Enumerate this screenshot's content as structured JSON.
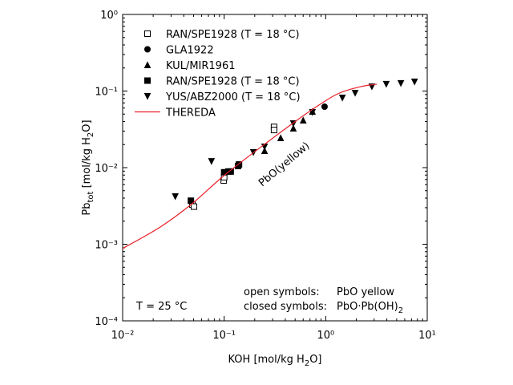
{
  "chart_data": {
    "type": "scatter",
    "xlabel": [
      "KOH [mol/kg H",
      "2",
      "O]"
    ],
    "ylabel": [
      "Pb",
      "tot",
      " [mol/kg H",
      "2",
      "O]"
    ],
    "xscale": "log",
    "yscale": "log",
    "xlim": [
      0.01,
      10
    ],
    "ylim": [
      0.0001,
      1
    ],
    "xticks": [
      {
        "value": 0.01,
        "label": "10⁻²"
      },
      {
        "value": 0.1,
        "label": "10⁻¹"
      },
      {
        "value": 1,
        "label": "10⁰"
      },
      {
        "value": 10,
        "label": "10¹"
      }
    ],
    "yticks": [
      {
        "value": 0.0001,
        "label": "10⁻⁴"
      },
      {
        "value": 0.001,
        "label": "10⁻³"
      },
      {
        "value": 0.01,
        "label": "10⁻²"
      },
      {
        "value": 0.1,
        "label": "10⁻¹"
      },
      {
        "value": 1,
        "label": "10⁰"
      }
    ],
    "legend": "upper left",
    "series": [
      {
        "name": "RAN/SPE1928 (T = 18 °C)",
        "marker": "open-square",
        "color": "#000000",
        "x": [
          0.0486,
          0.0504,
          0.099,
          0.1,
          0.31,
          0.31
        ],
        "values": [
          0.0033,
          0.0031,
          0.0068,
          0.0075,
          0.034,
          0.031
        ]
      },
      {
        "name": "GLA1922",
        "marker": "circle",
        "color": "#000000",
        "x": [
          0.975
        ],
        "values": [
          0.0625
        ]
      },
      {
        "name": "KUL/MIR1961",
        "marker": "triangle-up",
        "color": "#000000",
        "x": [
          0.25,
          0.36,
          0.48,
          0.6,
          0.74
        ],
        "values": [
          0.0166,
          0.0244,
          0.0326,
          0.0415,
          0.054
        ]
      },
      {
        "name": "RAN/SPE1928 (T = 18 °C)",
        "marker": "square",
        "color": "#000000",
        "x": [
          0.047,
          0.1,
          0.11,
          0.116,
          0.137,
          0.14
        ],
        "values": [
          0.0037,
          0.0087,
          0.0089,
          0.0089,
          0.0105,
          0.011
        ]
      },
      {
        "name": "YUS/ABZ2000 (T = 18 °C)",
        "marker": "triangle-down",
        "color": "#000000",
        "x": [
          0.033,
          0.075,
          0.194,
          0.25,
          0.48,
          0.74,
          1.46,
          1.95,
          2.85,
          3.95,
          5.5,
          7.5
        ],
        "values": [
          0.0042,
          0.0121,
          0.0158,
          0.0187,
          0.0377,
          0.0528,
          0.0815,
          0.094,
          0.114,
          0.123,
          0.126,
          0.132
        ]
      },
      {
        "name": "THEREDA",
        "marker": "line",
        "color": "#e8202a",
        "x": [
          0.01,
          0.0235,
          0.0485,
          0.1,
          0.25,
          0.62,
          1.27,
          2.2,
          3.2
        ],
        "values": [
          0.00088,
          0.00168,
          0.0034,
          0.0079,
          0.0202,
          0.049,
          0.09,
          0.114,
          0.123
        ]
      }
    ],
    "annotations": {
      "phase": "PbO(yellow)",
      "temperature": "T = 25 °C",
      "open_label": "open symbols:",
      "open_desc": "PbO yellow",
      "closed_label": "closed symbols:",
      "closed_desc": [
        "PbO·Pb(OH)",
        "2"
      ]
    }
  }
}
